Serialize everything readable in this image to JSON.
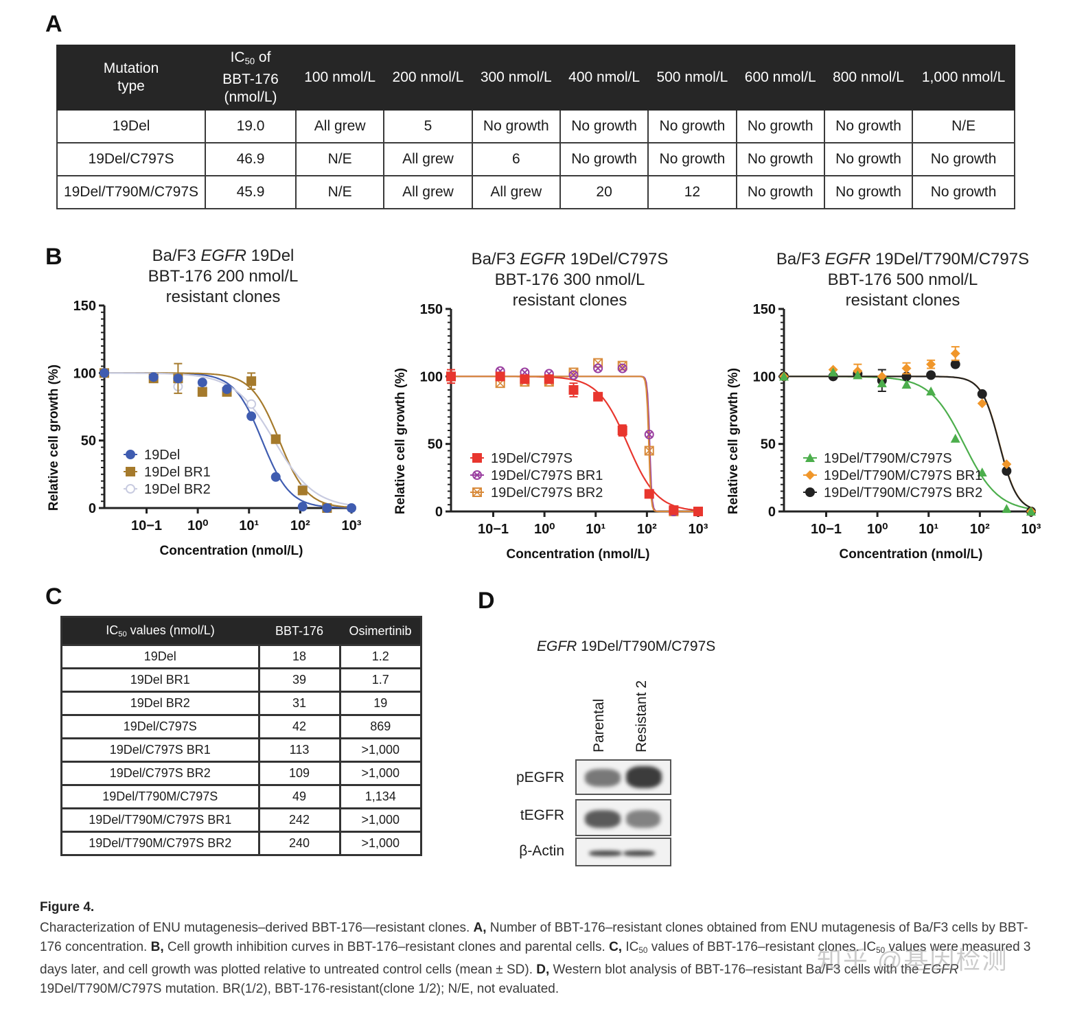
{
  "panel_letters": {
    "a": "A",
    "b": "B",
    "c": "C",
    "d": "D"
  },
  "table_a": {
    "headers": [
      "Mutation type",
      "IC50 of BBT-176 (nmol/L)",
      "100 nmol/L",
      "200 nmol/L",
      "300 nmol/L",
      "400 nmol/L",
      "500 nmol/L",
      "600 nmol/L",
      "800 nmol/L",
      "1,000 nmol/L"
    ],
    "header_parts": {
      "mutation_line1": "Mutation",
      "mutation_line2": "type",
      "ic50_prefix": "IC",
      "ic50_sub": "50",
      "ic50_suffix": " of",
      "ic50_line2": "BBT-176",
      "ic50_line3": "(nmol/L)"
    },
    "rows": [
      [
        "19Del",
        "19.0",
        "All grew",
        "5",
        "No growth",
        "No growth",
        "No growth",
        "No growth",
        "No growth",
        "N/E"
      ],
      [
        "19Del/C797S",
        "46.9",
        "N/E",
        "All grew",
        "6",
        "No growth",
        "No growth",
        "No growth",
        "No growth",
        "No growth"
      ],
      [
        "19Del/T790M/C797S",
        "45.9",
        "N/E",
        "All grew",
        "All grew",
        "20",
        "12",
        "No growth",
        "No growth",
        "No growth"
      ]
    ]
  },
  "chart_data": [
    {
      "type": "line",
      "title_parts": [
        "Ba/F3 ",
        "EGFR",
        " 19Del"
      ],
      "title_line2": "BBT-176 200 nmol/L",
      "title_line3": "resistant clones",
      "xlabel": "Concentration (nmol/L)",
      "ylabel": "Relative cell growth (%)",
      "xscale": "log",
      "xlim": [
        0.015,
        1000
      ],
      "ylim": [
        0,
        150
      ],
      "yticks": [
        0,
        50,
        100,
        150
      ],
      "xticks": [
        "10−1",
        "10⁰",
        "10¹",
        "10²",
        "10³"
      ],
      "xtick_values": [
        0.1,
        1,
        10,
        100,
        1000
      ],
      "legend_position": "bottom-left",
      "x": [
        0.015,
        0.137,
        0.412,
        1.23,
        3.7,
        11.1,
        33.3,
        111,
        333,
        1000
      ],
      "series": [
        {
          "name": "19Del",
          "color": "#3f5cb0",
          "marker": "circle",
          "values": [
            100,
            97,
            96,
            93,
            88,
            68,
            23,
            1,
            0,
            0
          ],
          "ic50": 18,
          "hill": 1.6
        },
        {
          "name": "19Del BR1",
          "color": "#a57a2c",
          "marker": "square",
          "values": [
            100,
            96,
            96,
            86,
            86,
            94,
            51,
            13,
            0,
            null
          ],
          "errors": [
            0,
            0,
            11,
            3,
            0,
            6,
            0,
            0,
            0,
            0
          ],
          "ic50": 39,
          "hill": 1.6
        },
        {
          "name": "19Del BR2",
          "color": "#c8cbe0",
          "marker": "open-circle",
          "values": [
            100,
            96,
            90,
            89,
            87,
            77,
            51,
            14,
            0,
            0
          ],
          "ic50": 31,
          "hill": 1.1
        }
      ]
    },
    {
      "type": "line",
      "title_parts": [
        "Ba/F3 ",
        "EGFR",
        " 19Del/C797S"
      ],
      "title_line2": "BBT-176 300 nmol/L",
      "title_line3": "resistant clones",
      "xlabel": "Concentration (nmol/L)",
      "ylabel": "Relative cell growth (%)",
      "xscale": "log",
      "xlim": [
        0.015,
        1000
      ],
      "ylim": [
        0,
        150
      ],
      "yticks": [
        0,
        50,
        100,
        150
      ],
      "xticks": [
        "10−1",
        "10⁰",
        "10¹",
        "10²",
        "10³"
      ],
      "xtick_values": [
        0.1,
        1,
        10,
        100,
        1000
      ],
      "legend_position": "bottom-left",
      "x": [
        0.015,
        0.137,
        0.412,
        1.23,
        3.7,
        11.1,
        33.3,
        111,
        333,
        1000
      ],
      "series": [
        {
          "name": "19Del/C797S",
          "color": "#e8362e",
          "marker": "square",
          "values": [
            100,
            100,
            98,
            98,
            90,
            85,
            60,
            13,
            1,
            0
          ],
          "errors": [
            5,
            0,
            0,
            0,
            5,
            0,
            4,
            0,
            0,
            0
          ],
          "ic50": 42,
          "hill": 1.5
        },
        {
          "name": "19Del/C797S BR1",
          "color": "#9a3fa0",
          "marker": "circle-x",
          "values": [
            100,
            104,
            103,
            102,
            101,
            106,
            106,
            57,
            0,
            0
          ],
          "ic50": 113,
          "hill": 20
        },
        {
          "name": "19Del/C797S BR2",
          "color": "#d88a3a",
          "marker": "square-x",
          "values": [
            100,
            95,
            96,
            96,
            103,
            110,
            108,
            45,
            0,
            0
          ],
          "ic50": 109,
          "hill": 20
        }
      ]
    },
    {
      "type": "line",
      "title_parts": [
        "Ba/F3 ",
        "EGFR",
        " 19Del/T790M/C797S"
      ],
      "title_line2": "BBT-176 500 nmol/L",
      "title_line3": "resistant clones",
      "xlabel": "Concentration (nmol/L)",
      "ylabel": "Relative cell growth (%)",
      "xscale": "log",
      "xlim": [
        0.015,
        1000
      ],
      "ylim": [
        0,
        150
      ],
      "yticks": [
        0,
        50,
        100,
        150
      ],
      "xticks": [
        "10−1",
        "10⁰",
        "10¹",
        "10²",
        "10³"
      ],
      "xtick_values": [
        0.1,
        1,
        10,
        100,
        1000
      ],
      "legend_position": "bottom-left",
      "x": [
        0.015,
        0.137,
        0.412,
        1.23,
        3.7,
        11.1,
        33.3,
        111,
        333,
        1000
      ],
      "series": [
        {
          "name": "19Del/T790M/C797S",
          "color": "#4cae4c",
          "marker": "triangle",
          "values": [
            100,
            103,
            101,
            95,
            94,
            89,
            54,
            29,
            2,
            0
          ],
          "ic50": 49,
          "hill": 1.3
        },
        {
          "name": "19Del/T790M/C797S BR1",
          "color": "#f0962a",
          "marker": "diamond",
          "values": [
            100,
            105,
            104,
            100,
            106,
            109,
            117,
            80,
            35,
            0
          ],
          "errors": [
            0,
            0,
            5,
            0,
            4,
            3,
            5,
            0,
            0,
            0
          ],
          "ic50": 242,
          "hill": 2.5
        },
        {
          "name": "19Del/T790M/C797S BR2",
          "color": "#222222",
          "marker": "circle",
          "values": [
            100,
            100,
            102,
            97,
            100,
            101,
            109,
            87,
            30,
            0
          ],
          "errors": [
            0,
            0,
            0,
            8,
            0,
            0,
            0,
            0,
            0,
            0
          ],
          "ic50": 240,
          "hill": 2.5
        }
      ]
    }
  ],
  "table_c": {
    "header_prefix": "IC",
    "header_sub": "50",
    "header_suffix": " values (nmol/L)",
    "columns": [
      "IC50 values (nmol/L)",
      "BBT-176",
      "Osimertinib"
    ],
    "rows": [
      [
        "19Del",
        "18",
        "1.2"
      ],
      [
        "19Del BR1",
        "39",
        "1.7"
      ],
      [
        "19Del BR2",
        "31",
        "19"
      ],
      [
        "19Del/C797S",
        "42",
        "869"
      ],
      [
        "19Del/C797S BR1",
        "113",
        ">1,000"
      ],
      [
        "19Del/C797S BR2",
        "109",
        ">1,000"
      ],
      [
        "19Del/T790M/C797S",
        "49",
        "1,134"
      ],
      [
        "19Del/T790M/C797S BR1",
        "242",
        ">1,000"
      ],
      [
        "19Del/T790M/C797S BR2",
        "240",
        ">1,000"
      ]
    ]
  },
  "western_blot": {
    "title_italic": "EGFR",
    "title_rest": " 19Del/T790M/C797S",
    "lanes": [
      "Parental",
      "Resistant 2"
    ],
    "rows": [
      {
        "label": "pEGFR",
        "intensity": [
          0.55,
          0.85
        ]
      },
      {
        "label": "tEGFR",
        "intensity": [
          0.7,
          0.5
        ]
      },
      {
        "label": "β-Actin",
        "intensity": [
          0.8,
          0.8
        ]
      }
    ]
  },
  "caption": {
    "title": "Figure 4.",
    "text_1": "Characterization of ENU mutagenesis–derived BBT-176—resistant clones. ",
    "a_label": "A,",
    "text_a": " Number of BBT-176–resistant clones obtained from ENU mutagenesis of Ba/F3 cells by BBT-176 concentration. ",
    "b_label": "B,",
    "text_b": " Cell growth inhibition curves in BBT-176–resistant clones and parental cells. ",
    "c_label": "C,",
    "text_c1": " IC",
    "c_sub": "50",
    "text_c2": " values of BBT-176–resistant clones. IC",
    "c_sub2": "50",
    "text_c3": " values were measured 3 days later, and cell growth was plotted relative to untreated control cells (mean ± SD). ",
    "d_label": "D,",
    "text_d": " Western blot analysis of BBT-176–resistant Ba/F3 cells with the ",
    "egfr": "EGFR",
    "text_end": " 19Del/T790M/C797S mutation. BR(1/2), BBT-176-resistant(clone 1/2); N/E, not evaluated."
  },
  "watermark": "知乎 @基因检测"
}
